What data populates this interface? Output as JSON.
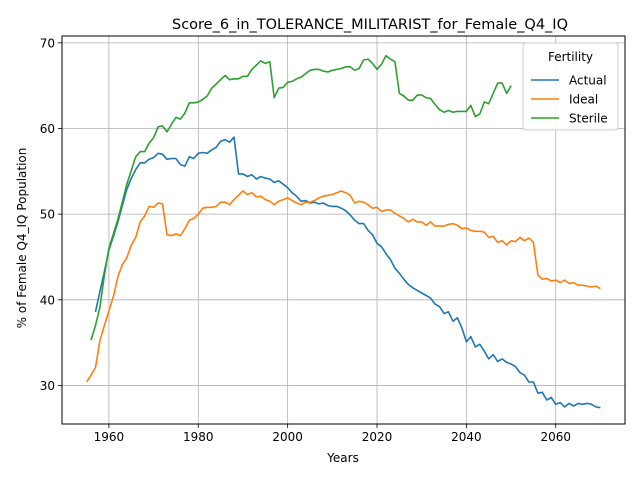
{
  "chart_data": {
    "type": "line",
    "title": "Score_6_in_TOLERANCE_MILITARIST_for_Female_Q4_IQ",
    "xlabel": "Years",
    "ylabel": "% of Female Q4_IQ Population",
    "xlim": [
      1949.5,
      2075.5
    ],
    "ylim": [
      25.5,
      70.8
    ],
    "xticks": [
      1960,
      1980,
      2000,
      2020,
      2040,
      2060
    ],
    "yticks": [
      30,
      40,
      50,
      60,
      70
    ],
    "grid": true,
    "legend": {
      "title": "Fertility",
      "placement": "top-right"
    },
    "series": [
      {
        "name": "Actual",
        "color": "#1f77b4",
        "x": [
          1957,
          1958,
          1959,
          1960,
          1961,
          1962,
          1963,
          1964,
          1965,
          1966,
          1967,
          1968,
          1969,
          1970,
          1971,
          1972,
          1973,
          1974,
          1975,
          1976,
          1977,
          1978,
          1979,
          1980,
          1981,
          1982,
          1983,
          1984,
          1985,
          1986,
          1987,
          1988,
          1989,
          1990,
          1991,
          1992,
          1993,
          1994,
          1995,
          1996,
          1997,
          1998,
          1999,
          2000,
          2001,
          2002,
          2003,
          2004,
          2005,
          2006,
          2007,
          2008,
          2009,
          2010,
          2011,
          2012,
          2013,
          2014,
          2015,
          2016,
          2017,
          2018,
          2019,
          2020,
          2021,
          2022,
          2023,
          2024,
          2025,
          2026,
          2027,
          2028,
          2029,
          2030,
          2031,
          2032,
          2033,
          2034,
          2035,
          2036,
          2037,
          2038,
          2039,
          2040,
          2041,
          2042,
          2043,
          2044,
          2045,
          2046,
          2047,
          2048,
          2049,
          2050,
          2051,
          2052,
          2053,
          2054,
          2055,
          2056,
          2057,
          2058,
          2059,
          2060,
          2061,
          2062,
          2063,
          2064,
          2065,
          2066,
          2067,
          2068,
          2069,
          2070
        ],
        "values": [
          38.6,
          41.0,
          43.3,
          45.8,
          47.4,
          49.1,
          51.0,
          52.9,
          54.2,
          55.2,
          56.0,
          56.0,
          56.4,
          56.6,
          57.1,
          57.0,
          56.4,
          56.5,
          56.5,
          55.8,
          55.6,
          56.7,
          56.5,
          57.1,
          57.2,
          57.1,
          57.5,
          57.8,
          58.5,
          58.7,
          58.4,
          59.0,
          54.7,
          54.7,
          54.4,
          54.6,
          54.1,
          54.4,
          54.2,
          54.1,
          53.7,
          53.9,
          53.5,
          53.1,
          52.5,
          52.1,
          51.5,
          51.6,
          51.3,
          51.4,
          51.2,
          51.3,
          51.0,
          50.9,
          50.9,
          50.7,
          50.4,
          49.9,
          49.3,
          48.9,
          48.9,
          48.1,
          47.6,
          46.6,
          46.2,
          45.4,
          44.7,
          43.7,
          43.1,
          42.4,
          41.8,
          41.4,
          41.1,
          40.8,
          40.5,
          40.2,
          39.5,
          39.2,
          38.4,
          38.6,
          37.5,
          37.9,
          36.7,
          35.1,
          35.7,
          34.5,
          34.8,
          34.0,
          33.1,
          33.6,
          32.8,
          33.1,
          32.7,
          32.5,
          32.2,
          31.5,
          31.2,
          30.4,
          30.4,
          29.1,
          29.2,
          28.3,
          28.6,
          27.8,
          28.0,
          27.5,
          27.9,
          27.6,
          27.9,
          27.8,
          27.9,
          27.8,
          27.5,
          27.4
        ]
      },
      {
        "name": "Ideal",
        "color": "#ff7f0e",
        "x": [
          1955,
          1956,
          1957,
          1958,
          1959,
          1960,
          1961,
          1962,
          1963,
          1964,
          1965,
          1966,
          1967,
          1968,
          1969,
          1970,
          1971,
          1972,
          1973,
          1974,
          1975,
          1976,
          1977,
          1978,
          1979,
          1980,
          1981,
          1982,
          1983,
          1984,
          1985,
          1986,
          1987,
          1988,
          1989,
          1990,
          1991,
          1992,
          1993,
          1994,
          1995,
          1996,
          1997,
          1998,
          1999,
          2000,
          2001,
          2002,
          2003,
          2004,
          2005,
          2006,
          2007,
          2008,
          2009,
          2010,
          2011,
          2012,
          2013,
          2014,
          2015,
          2016,
          2017,
          2018,
          2019,
          2020,
          2021,
          2022,
          2023,
          2024,
          2025,
          2026,
          2027,
          2028,
          2029,
          2030,
          2031,
          2032,
          2033,
          2034,
          2035,
          2036,
          2037,
          2038,
          2039,
          2040,
          2041,
          2042,
          2043,
          2044,
          2045,
          2046,
          2047,
          2048,
          2049,
          2050,
          2051,
          2052,
          2053,
          2054,
          2055,
          2056,
          2057,
          2058,
          2059,
          2060,
          2061,
          2062,
          2063,
          2064,
          2065,
          2066,
          2067,
          2068,
          2069,
          2070
        ],
        "values": [
          30.4,
          31.2,
          32.1,
          35.3,
          37.0,
          38.7,
          40.4,
          42.7,
          44.1,
          44.9,
          46.4,
          47.3,
          49.1,
          49.8,
          50.9,
          50.8,
          51.3,
          51.2,
          47.6,
          47.5,
          47.7,
          47.5,
          48.3,
          49.3,
          49.5,
          50.0,
          50.7,
          50.8,
          50.8,
          50.9,
          51.4,
          51.4,
          51.1,
          51.7,
          52.2,
          52.7,
          52.3,
          52.5,
          52.0,
          52.1,
          51.7,
          51.5,
          51.1,
          51.5,
          51.7,
          51.9,
          51.6,
          51.3,
          51.1,
          51.4,
          51.4,
          51.6,
          51.9,
          52.1,
          52.2,
          52.3,
          52.5,
          52.7,
          52.5,
          52.2,
          51.3,
          51.5,
          51.4,
          51.1,
          50.7,
          50.8,
          50.3,
          50.5,
          50.5,
          50.1,
          49.8,
          49.5,
          49.1,
          49.4,
          49.1,
          49.1,
          48.7,
          49.1,
          48.6,
          48.6,
          48.6,
          48.8,
          48.9,
          48.7,
          48.3,
          48.4,
          48.1,
          48.0,
          48.0,
          47.9,
          47.3,
          47.4,
          46.7,
          46.9,
          46.4,
          46.9,
          46.8,
          47.3,
          46.9,
          47.2,
          46.7,
          42.9,
          42.4,
          42.5,
          42.2,
          42.3,
          42.0,
          42.3,
          41.9,
          42.0,
          41.7,
          41.7,
          41.6,
          41.5,
          41.6,
          41.3
        ]
      },
      {
        "name": "Sterile",
        "color": "#2ca02c",
        "x": [
          1956,
          1957,
          1958,
          1959,
          1960,
          1961,
          1962,
          1963,
          1964,
          1965,
          1966,
          1967,
          1968,
          1969,
          1970,
          1971,
          1972,
          1973,
          1974,
          1975,
          1976,
          1977,
          1978,
          1979,
          1980,
          1981,
          1982,
          1983,
          1984,
          1985,
          1986,
          1987,
          1988,
          1989,
          1990,
          1991,
          1992,
          1993,
          1994,
          1995,
          1996,
          1997,
          1998,
          1999,
          2000,
          2001,
          2002,
          2003,
          2004,
          2005,
          2006,
          2007,
          2008,
          2009,
          2010,
          2011,
          2012,
          2013,
          2014,
          2015,
          2016,
          2017,
          2018,
          2019,
          2020,
          2021,
          2022,
          2023,
          2024,
          2025,
          2026,
          2027,
          2028,
          2029,
          2030,
          2031,
          2032,
          2033,
          2034,
          2035,
          2036,
          2037,
          2038,
          2039,
          2040,
          2041,
          2042,
          2043,
          2044,
          2045,
          2046,
          2047,
          2048,
          2049,
          2050
        ],
        "values": [
          35.3,
          37.0,
          39.2,
          42.9,
          46.0,
          47.7,
          49.4,
          51.4,
          53.5,
          55.1,
          56.7,
          57.3,
          57.3,
          58.3,
          58.9,
          60.2,
          60.3,
          59.6,
          60.5,
          61.3,
          61.1,
          61.8,
          63.0,
          63.0,
          63.1,
          63.4,
          63.8,
          64.7,
          65.2,
          65.7,
          66.2,
          65.7,
          65.8,
          65.8,
          66.1,
          66.1,
          66.9,
          67.4,
          67.9,
          67.6,
          67.8,
          63.6,
          64.7,
          64.8,
          65.4,
          65.5,
          65.8,
          66.0,
          66.4,
          66.8,
          66.9,
          66.9,
          66.7,
          66.6,
          66.8,
          66.9,
          67.0,
          67.2,
          67.2,
          66.8,
          67.0,
          68.0,
          68.1,
          67.6,
          66.9,
          67.5,
          68.5,
          68.1,
          67.8,
          64.1,
          63.8,
          63.3,
          63.3,
          63.9,
          63.9,
          63.6,
          63.5,
          62.8,
          62.2,
          61.9,
          62.1,
          61.9,
          62.0,
          62.0,
          62.0,
          62.7,
          61.4,
          61.7,
          63.1,
          62.9,
          64.1,
          65.3,
          65.3,
          64.1,
          65.0
        ]
      }
    ]
  }
}
